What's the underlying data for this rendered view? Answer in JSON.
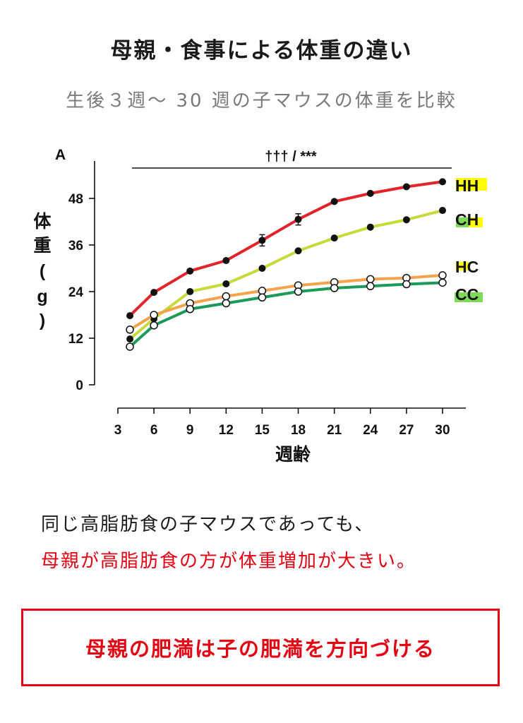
{
  "title": "母親・食事による体重の違い",
  "subtitle": "生後３週〜 30 週の子マウスの体重を比較",
  "caption": {
    "line1": "同じ高脂肪食の子マウスであっても、",
    "line2": "母親が高脂肪食の方が体重増加が大きい。"
  },
  "conclusion": "母親の肥満は子の肥満を方向づける",
  "chart_data": {
    "type": "line",
    "panel_label": "A",
    "significance": "††† / ***",
    "ylabel": "体重（g）",
    "xlabel": "週齢",
    "xticks": [
      3,
      6,
      9,
      12,
      15,
      18,
      21,
      24,
      27,
      30
    ],
    "yticks": [
      0,
      12,
      24,
      36,
      48
    ],
    "xlim": [
      3,
      30
    ],
    "ylim": [
      0,
      48
    ],
    "x": [
      4,
      6,
      9,
      12,
      15,
      18,
      21,
      24,
      27,
      30
    ],
    "series": [
      {
        "name": "HH",
        "color": "#e3242b",
        "marker": "filled",
        "label_highlight": "#ffff00",
        "values": [
          17.8,
          23.8,
          29.3,
          32.0,
          37.2,
          42.6,
          47.2,
          49.3,
          51.0,
          52.3
        ]
      },
      {
        "name": "CH",
        "color": "#c8d93a",
        "marker": "filled",
        "label_highlight": "#ffff00",
        "values": [
          11.8,
          17.0,
          24.0,
          26.0,
          30.0,
          34.5,
          37.8,
          40.6,
          42.5,
          44.9
        ]
      },
      {
        "name": "HC",
        "color": "#f4a24c",
        "marker": "open",
        "label_highlight": "#ffff00",
        "values": [
          14.2,
          18.0,
          21.0,
          22.8,
          24.2,
          25.6,
          26.4,
          27.2,
          27.5,
          28.2
        ]
      },
      {
        "name": "CC",
        "color": "#1b9a5a",
        "marker": "open",
        "label_highlight": "#7ed957",
        "values": [
          9.8,
          15.3,
          19.5,
          21.0,
          22.5,
          24.0,
          24.9,
          25.4,
          25.9,
          26.3
        ]
      }
    ]
  }
}
